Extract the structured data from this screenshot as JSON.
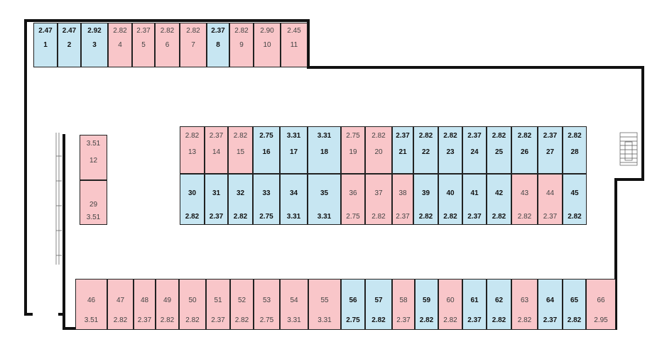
{
  "palette": {
    "high": "#f9c6c9",
    "low": "#c7e6f2",
    "wall": "#111111"
  },
  "legend_icons": [
    "stairs-icon",
    "escalator-icon"
  ],
  "rows": {
    "top": [
      {
        "id": "1",
        "price": "2.47",
        "status": "low"
      },
      {
        "id": "2",
        "price": "2.47",
        "status": "low"
      },
      {
        "id": "3",
        "price": "2.92",
        "status": "low"
      },
      {
        "id": "4",
        "price": "2.82",
        "status": "high"
      },
      {
        "id": "5",
        "price": "2.37",
        "status": "high"
      },
      {
        "id": "6",
        "price": "2.82",
        "status": "high"
      },
      {
        "id": "7",
        "price": "2.82",
        "status": "high"
      },
      {
        "id": "8",
        "price": "2.37",
        "status": "low"
      },
      {
        "id": "9",
        "price": "2.82",
        "status": "high"
      },
      {
        "id": "10",
        "price": "2.90",
        "status": "high"
      },
      {
        "id": "11",
        "price": "2.45",
        "status": "high"
      }
    ],
    "left": [
      {
        "id": "12",
        "price": "3.51",
        "status": "high"
      },
      {
        "id": "29",
        "price": "3.51",
        "status": "high"
      }
    ],
    "middle_top": [
      {
        "id": "13",
        "price": "2.82",
        "status": "high"
      },
      {
        "id": "14",
        "price": "2.37",
        "status": "high"
      },
      {
        "id": "15",
        "price": "2.82",
        "status": "high"
      },
      {
        "id": "16",
        "price": "2.75",
        "status": "low"
      },
      {
        "id": "17",
        "price": "3.31",
        "status": "low"
      },
      {
        "id": "18",
        "price": "3.31",
        "status": "low"
      },
      {
        "id": "19",
        "price": "2.75",
        "status": "high"
      },
      {
        "id": "20",
        "price": "2.82",
        "status": "high"
      },
      {
        "id": "21",
        "price": "2.37",
        "status": "low"
      },
      {
        "id": "22",
        "price": "2.82",
        "status": "low"
      },
      {
        "id": "23",
        "price": "2.82",
        "status": "low"
      },
      {
        "id": "24",
        "price": "2.37",
        "status": "low"
      },
      {
        "id": "25",
        "price": "2.82",
        "status": "low"
      },
      {
        "id": "26",
        "price": "2.82",
        "status": "low"
      },
      {
        "id": "27",
        "price": "2.37",
        "status": "low"
      },
      {
        "id": "28",
        "price": "2.82",
        "status": "low"
      }
    ],
    "middle_bottom": [
      {
        "id": "30",
        "price": "2.82",
        "status": "low"
      },
      {
        "id": "31",
        "price": "2.37",
        "status": "low"
      },
      {
        "id": "32",
        "price": "2.82",
        "status": "low"
      },
      {
        "id": "33",
        "price": "2.75",
        "status": "low"
      },
      {
        "id": "34",
        "price": "3.31",
        "status": "low"
      },
      {
        "id": "35",
        "price": "3.31",
        "status": "low"
      },
      {
        "id": "36",
        "price": "2.75",
        "status": "high"
      },
      {
        "id": "37",
        "price": "2.82",
        "status": "high"
      },
      {
        "id": "38",
        "price": "2.37",
        "status": "high"
      },
      {
        "id": "39",
        "price": "2.82",
        "status": "low"
      },
      {
        "id": "40",
        "price": "2.82",
        "status": "low"
      },
      {
        "id": "41",
        "price": "2.37",
        "status": "low"
      },
      {
        "id": "42",
        "price": "2.82",
        "status": "low"
      },
      {
        "id": "43",
        "price": "2.82",
        "status": "high"
      },
      {
        "id": "44",
        "price": "2.37",
        "status": "high"
      },
      {
        "id": "45",
        "price": "2.82",
        "status": "low"
      }
    ],
    "bottom": [
      {
        "id": "46",
        "price": "3.51",
        "status": "high"
      },
      {
        "id": "47",
        "price": "2.82",
        "status": "high"
      },
      {
        "id": "48",
        "price": "2.37",
        "status": "high"
      },
      {
        "id": "49",
        "price": "2.82",
        "status": "high"
      },
      {
        "id": "50",
        "price": "2.82",
        "status": "high"
      },
      {
        "id": "51",
        "price": "2.37",
        "status": "high"
      },
      {
        "id": "52",
        "price": "2.82",
        "status": "high"
      },
      {
        "id": "53",
        "price": "2.75",
        "status": "high"
      },
      {
        "id": "54",
        "price": "3.31",
        "status": "high"
      },
      {
        "id": "55",
        "price": "3.31",
        "status": "high"
      },
      {
        "id": "56",
        "price": "2.75",
        "status": "low"
      },
      {
        "id": "57",
        "price": "2.82",
        "status": "low"
      },
      {
        "id": "58",
        "price": "2.37",
        "status": "high"
      },
      {
        "id": "59",
        "price": "2.82",
        "status": "low"
      },
      {
        "id": "60",
        "price": "2.82",
        "status": "high"
      },
      {
        "id": "61",
        "price": "2.37",
        "status": "low"
      },
      {
        "id": "62",
        "price": "2.82",
        "status": "low"
      },
      {
        "id": "63",
        "price": "2.82",
        "status": "high"
      },
      {
        "id": "64",
        "price": "2.37",
        "status": "low"
      },
      {
        "id": "65",
        "price": "2.82",
        "status": "low"
      },
      {
        "id": "66",
        "price": "2.95",
        "status": "high"
      }
    ]
  }
}
